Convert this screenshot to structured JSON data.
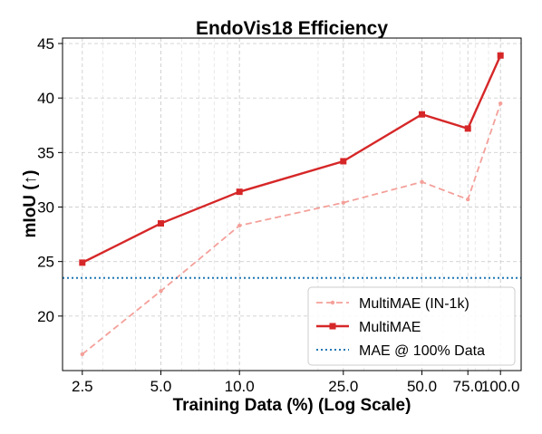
{
  "chart_data": {
    "type": "line",
    "title": "EndoVis18 Efficiency",
    "xlabel": "Training Data (%) (Log Scale)",
    "ylabel": "mIoU (↑)",
    "x_scale": "log",
    "xlim": [
      2.1,
      120
    ],
    "ylim": [
      15,
      45.5
    ],
    "x_ticks": [
      2.5,
      5.0,
      10.0,
      25.0,
      50.0,
      75.0,
      100.0
    ],
    "x_tick_labels": [
      "2.5",
      "5.0",
      "10.0",
      "25.0",
      "50.0",
      "75.0",
      "100.0"
    ],
    "y_ticks": [
      20,
      25,
      30,
      35,
      40,
      45
    ],
    "y_tick_labels": [
      "20",
      "25",
      "30",
      "35",
      "40",
      "45"
    ],
    "grid": true,
    "legend_position": "lower-right",
    "series": [
      {
        "name": "MultiMAE (IN-1k)",
        "style": "dashed",
        "color": "#f4a09a",
        "marker": "dot",
        "x": [
          2.5,
          5.0,
          10.0,
          25.0,
          50.0,
          75.0,
          100.0
        ],
        "y": [
          16.5,
          22.3,
          28.3,
          30.4,
          32.3,
          30.7,
          39.5
        ]
      },
      {
        "name": "MultiMAE",
        "style": "solid",
        "color": "#d62728",
        "marker": "square",
        "x": [
          2.5,
          5.0,
          10.0,
          25.0,
          50.0,
          75.0,
          100.0
        ],
        "y": [
          24.9,
          28.5,
          31.4,
          34.2,
          38.5,
          37.2,
          43.9
        ]
      },
      {
        "name": "MAE @ 100% Data",
        "style": "dotted",
        "color": "#1f77b4",
        "type": "hline",
        "y": 23.5
      }
    ]
  }
}
